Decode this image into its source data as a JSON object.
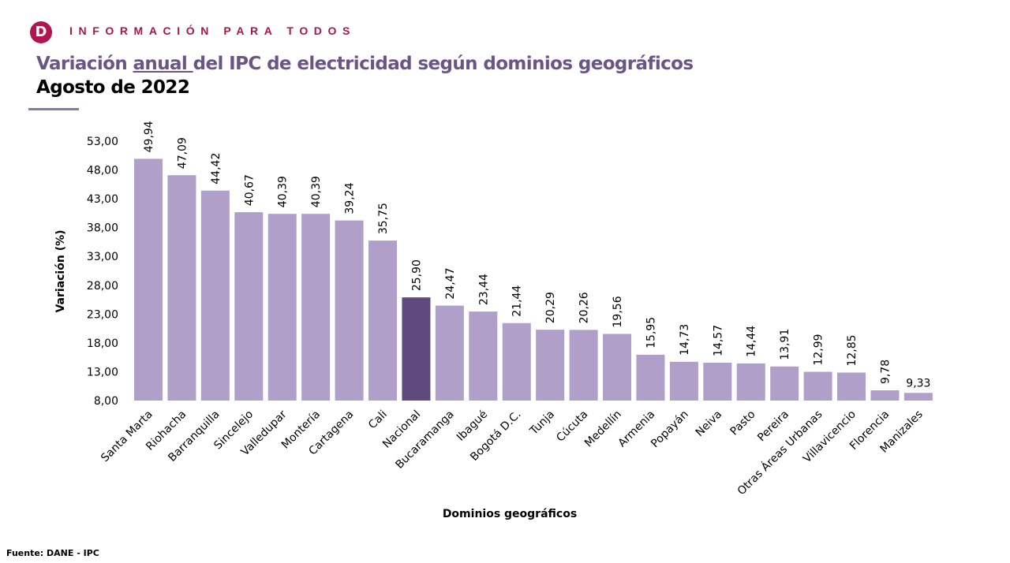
{
  "header": {
    "logo_letter": "D",
    "tagline": "INFORMACIÓN PARA TODOS",
    "title_before": "Variación ",
    "title_underlined": "anual ",
    "title_after": "del IPC de electricidad según dominios geográficos",
    "subtitle": "Agosto de 2022"
  },
  "footer": {
    "source": "Fuente: DANE - IPC"
  },
  "colors": {
    "bar": "#b09fc8",
    "highlight": "#5e4a7c",
    "title": "#6b5585",
    "brand": "#b0154f"
  },
  "chart_data": {
    "type": "bar",
    "title": "Variación anual del IPC de electricidad según dominios geográficos",
    "xlabel": "Dominios geográficos",
    "ylabel": "Variación (%)",
    "ylim": [
      8,
      53
    ],
    "yticks": [
      "8,00",
      "13,00",
      "18,00",
      "23,00",
      "28,00",
      "33,00",
      "38,00",
      "43,00",
      "48,00",
      "53,00"
    ],
    "grid": false,
    "highlight_category": "Nacional",
    "categories": [
      "Santa Marta",
      "Riohacha",
      "Barranquilla",
      "Sincelejo",
      "Valledupar",
      "Montería",
      "Cartagena",
      "Cali",
      "Nacional",
      "Bucaramanga",
      "Ibagué",
      "Bogotá D.C.",
      "Tunja",
      "Cúcuta",
      "Medellín",
      "Armenia",
      "Popayán",
      "Neiva",
      "Pasto",
      "Pereira",
      "Otras Áreas Urbanas",
      "Villavicencio",
      "Florencia",
      "Manizales"
    ],
    "values": [
      49.94,
      47.09,
      44.42,
      40.67,
      40.39,
      40.39,
      39.24,
      35.75,
      25.9,
      24.47,
      23.44,
      21.44,
      20.29,
      20.26,
      19.56,
      15.95,
      14.73,
      14.57,
      14.44,
      13.91,
      12.99,
      12.85,
      9.78,
      9.33
    ],
    "labels": [
      "49,94",
      "47,09",
      "44,42",
      "40,67",
      "40,39",
      "40,39",
      "39,24",
      "35,75",
      "25,90",
      "24,47",
      "23,44",
      "21,44",
      "20,29",
      "20,26",
      "19,56",
      "15,95",
      "14,73",
      "14,57",
      "14,44",
      "13,91",
      "12,99",
      "12,85",
      "9,78",
      "9,33"
    ]
  }
}
